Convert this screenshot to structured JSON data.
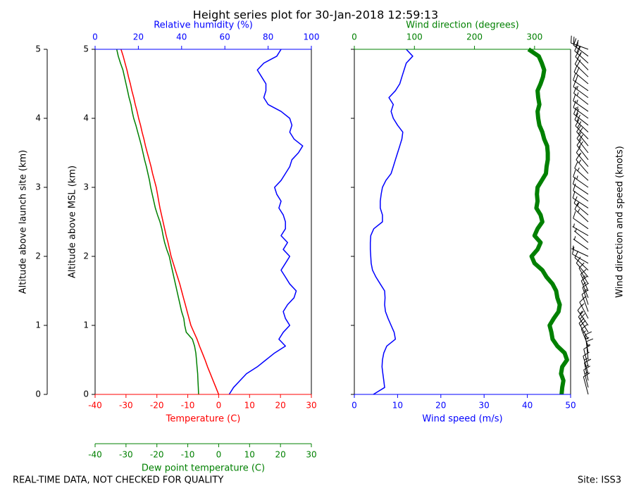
{
  "chart_data": {
    "type": "height_series",
    "title": "Height series plot for 30-Jan-2018 12:59:13",
    "footer_left": "REAL-TIME DATA, NOT CHECKED FOR QUALITY",
    "footer_right": "Site: ISS3",
    "y": [
      0,
      0.1,
      0.2,
      0.3,
      0.4,
      0.5,
      0.6,
      0.7,
      0.8,
      0.9,
      1,
      1.1,
      1.2,
      1.3,
      1.4,
      1.5,
      1.6,
      1.7,
      1.8,
      1.9,
      2,
      2.1,
      2.2,
      2.3,
      2.4,
      2.5,
      2.6,
      2.7,
      2.8,
      2.9,
      3,
      3.1,
      3.2,
      3.3,
      3.4,
      3.5,
      3.6,
      3.7,
      3.8,
      3.9,
      4,
      4.1,
      4.2,
      4.3,
      4.4,
      4.5,
      4.6,
      4.7,
      4.8,
      4.9,
      5
    ],
    "ylim": [
      0,
      5
    ],
    "yticks": [
      0,
      1,
      2,
      3,
      4,
      5
    ],
    "ylabel": "Altitude above MSL (km)",
    "launch_ylabel": "Altitude above launch site (km)",
    "launch_yticks": [
      0,
      1,
      2,
      3,
      4,
      5
    ],
    "barbs_label": "Wind direction and speed (knots)",
    "temperature": {
      "label": "Temperature (C)",
      "color": "#ff0000",
      "xlim": [
        -40,
        30
      ],
      "xticks": [
        -40,
        -30,
        -20,
        -10,
        0,
        10,
        20,
        30
      ],
      "values": [
        0,
        -0.9,
        -1.8,
        -2.7,
        -3.6,
        -4.4,
        -5.3,
        -6.2,
        -7,
        -8,
        -9,
        -9.6,
        -10.2,
        -10.8,
        -11.4,
        -12,
        -12.6,
        -13.3,
        -14,
        -14.7,
        -15.4,
        -15.9,
        -16.4,
        -17,
        -17.5,
        -18,
        -18.5,
        -19,
        -19.4,
        -19.8,
        -20.2,
        -20.8,
        -21.4,
        -21.9,
        -22.5,
        -23.1,
        -23.7,
        -24.2,
        -24.8,
        -25.3,
        -25.9,
        -26.4,
        -27,
        -27.5,
        -28.1,
        -28.6,
        -29.2,
        -29.7,
        -30.3,
        -30.9,
        -31.6
      ]
    },
    "dewpoint": {
      "label": "Dew point temperature (C)",
      "color": "#008000",
      "xlim": [
        -40,
        30
      ],
      "xticks": [
        -40,
        -30,
        -20,
        -10,
        0,
        10,
        20,
        30
      ],
      "values": [
        -6.5,
        -6.6,
        -6.7,
        -6.8,
        -7,
        -7.2,
        -7.4,
        -7.8,
        -8.5,
        -10.5,
        -11,
        -11.3,
        -12,
        -12.5,
        -13,
        -13.5,
        -14,
        -14.5,
        -15,
        -15.5,
        -16,
        -16.8,
        -17.5,
        -18,
        -18.4,
        -19,
        -19.8,
        -20.5,
        -21,
        -21.5,
        -22,
        -22.4,
        -22.9,
        -23.4,
        -24,
        -24.5,
        -25,
        -25.6,
        -26.2,
        -26.8,
        -27.5,
        -28,
        -28.4,
        -29,
        -29.5,
        -30,
        -30.5,
        -31,
        -31.8,
        -32.5,
        -33
      ]
    },
    "humidity": {
      "label": "Relative humidity (%)",
      "color": "#0000ff",
      "xlim": [
        0,
        100
      ],
      "xticks": [
        0,
        20,
        40,
        60,
        80,
        100
      ],
      "values": [
        62,
        64,
        67,
        70,
        75,
        79,
        83,
        88,
        85,
        87,
        90,
        88,
        87,
        89,
        92,
        93,
        90,
        88,
        86,
        88,
        90,
        87,
        89,
        86,
        88,
        88,
        87,
        85,
        86,
        84,
        83,
        86,
        88,
        90,
        91,
        94,
        96,
        92,
        90,
        91,
        90,
        86,
        80,
        78,
        79,
        79,
        77,
        75,
        78,
        84,
        86
      ]
    },
    "wind_speed": {
      "label": "Wind speed (m/s)",
      "color": "#0000ff",
      "xlim": [
        0,
        50
      ],
      "xticks": [
        0,
        10,
        20,
        30,
        40,
        50
      ],
      "values": [
        4.4,
        7,
        6.8,
        6.6,
        6.4,
        6.5,
        6.8,
        7.5,
        9.5,
        9.2,
        8.5,
        7.8,
        7.2,
        7,
        7.1,
        7,
        6,
        5,
        4.2,
        3.9,
        3.8,
        3.7,
        3.7,
        3.8,
        4.5,
        6.5,
        6.5,
        6,
        6,
        6.2,
        6.5,
        7.3,
        8.5,
        9,
        9.5,
        10,
        10.5,
        11,
        11.2,
        10,
        9,
        8.5,
        9,
        8,
        9.5,
        10.5,
        11,
        11.5,
        12,
        13.5,
        12
      ]
    },
    "wind_direction": {
      "label": "Wind direction (degrees)",
      "color": "#008000",
      "xlim": [
        0,
        360
      ],
      "xticks": [
        0,
        100,
        200,
        300
      ],
      "values": [
        345,
        346,
        348,
        344,
        346,
        354,
        350,
        338,
        330,
        328,
        325,
        332,
        340,
        342,
        338,
        336,
        330,
        320,
        313,
        300,
        295,
        305,
        310,
        300,
        305,
        313,
        310,
        303,
        305,
        304,
        305,
        312,
        319,
        320,
        322,
        322,
        321,
        316,
        313,
        308,
        306,
        305,
        308,
        306,
        305,
        310,
        314,
        316,
        312,
        307,
        290
      ]
    }
  }
}
